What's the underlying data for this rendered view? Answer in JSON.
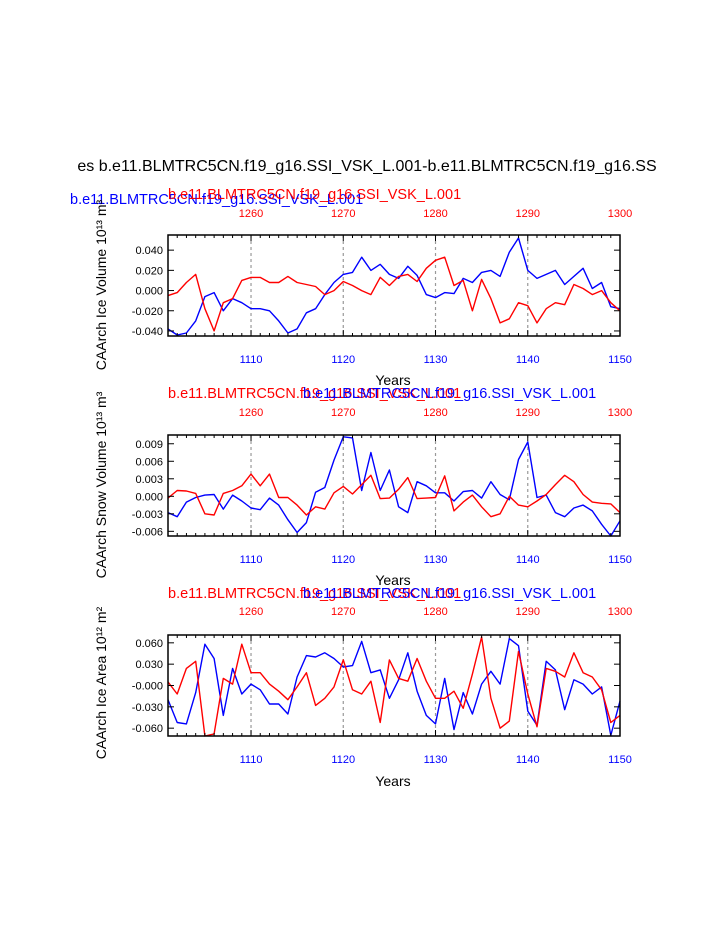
{
  "title": "es b.e11.BLMTRC5CN.f19_g16.SSI_VSK_L.001-b.e11.BLMTRC5CN.f19_g16.SS",
  "colors": {
    "blue": "#0000ff",
    "red": "#ff0000",
    "grid": "#999999",
    "frame": "#000000"
  },
  "chart_data": [
    {
      "type": "line",
      "name": "ice-volume",
      "ylabel": "CAArch Ice Volume 10¹³ m³",
      "xlabel": "Years",
      "legend_blue": "b.e11.BLMTRC5CN.f19_g16.SSI_VSK_L.001",
      "legend_red": "b.e11.BLMTRC5CN.f19_g16.SSI_VSK_L.001",
      "ylim": [
        -0.045,
        0.055
      ],
      "yticks": [
        0.04,
        0.02,
        0.0,
        -0.02,
        -0.04
      ],
      "ytick_labels": [
        "0.040",
        "0.020",
        "0.000",
        "-0.020",
        "-0.040"
      ],
      "bottom_xlim": [
        1101,
        1150
      ],
      "bottom_xticks": [
        1110,
        1120,
        1130,
        1140,
        1150
      ],
      "top_xlim": [
        1251,
        1300
      ],
      "top_xticks": [
        1260,
        1270,
        1280,
        1290,
        1300
      ],
      "series": [
        {
          "name": "blue",
          "x": [
            1101,
            1102,
            1103,
            1104,
            1105,
            1106,
            1107,
            1108,
            1109,
            1110,
            1111,
            1112,
            1113,
            1114,
            1115,
            1116,
            1117,
            1118,
            1119,
            1120,
            1121,
            1122,
            1123,
            1124,
            1125,
            1126,
            1127,
            1128,
            1129,
            1130,
            1131,
            1132,
            1133,
            1134,
            1135,
            1136,
            1137,
            1138,
            1139,
            1140,
            1141,
            1142,
            1143,
            1144,
            1145,
            1146,
            1147,
            1148,
            1149,
            1150
          ],
          "values": [
            -0.038,
            -0.044,
            -0.042,
            -0.03,
            -0.006,
            -0.002,
            -0.02,
            -0.008,
            -0.012,
            -0.018,
            -0.018,
            -0.02,
            -0.03,
            -0.042,
            -0.038,
            -0.022,
            -0.018,
            -0.004,
            0.008,
            0.016,
            0.018,
            0.033,
            0.02,
            0.026,
            0.016,
            0.012,
            0.024,
            0.015,
            -0.004,
            -0.007,
            -0.002,
            -0.003,
            0.012,
            0.008,
            0.018,
            0.02,
            0.014,
            0.038,
            0.052,
            0.02,
            0.012,
            0.016,
            0.02,
            0.006,
            0.014,
            0.022,
            0.002,
            0.008,
            -0.016,
            -0.018
          ]
        },
        {
          "name": "red",
          "x": [
            1101,
            1102,
            1103,
            1104,
            1105,
            1106,
            1107,
            1108,
            1109,
            1110,
            1111,
            1112,
            1113,
            1114,
            1115,
            1116,
            1117,
            1118,
            1119,
            1120,
            1121,
            1122,
            1123,
            1124,
            1125,
            1126,
            1127,
            1128,
            1129,
            1130,
            1131,
            1132,
            1133,
            1134,
            1135,
            1136,
            1137,
            1138,
            1139,
            1140,
            1141,
            1142,
            1143,
            1144,
            1145,
            1146,
            1147,
            1148,
            1149,
            1150
          ],
          "values": [
            -0.005,
            -0.002,
            0.008,
            0.016,
            -0.018,
            -0.04,
            -0.012,
            -0.008,
            0.01,
            0.013,
            0.013,
            0.008,
            0.008,
            0.014,
            0.008,
            0.006,
            0.004,
            -0.004,
            0.0,
            0.009,
            0.005,
            0.0,
            -0.004,
            0.013,
            0.005,
            0.014,
            0.016,
            0.009,
            0.022,
            0.03,
            0.033,
            0.005,
            0.01,
            -0.02,
            0.011,
            -0.008,
            -0.032,
            -0.028,
            -0.012,
            -0.015,
            -0.032,
            -0.018,
            -0.012,
            -0.014,
            0.006,
            0.002,
            -0.004,
            0.0,
            -0.012,
            -0.02
          ]
        }
      ]
    },
    {
      "type": "line",
      "name": "snow-volume",
      "ylabel": "CAArch Snow Volume 10¹³ m³",
      "xlabel": "Years",
      "legend_blue": "b.e11.BLMTRC5CN.f19_g16.SSI_VSK_L.001",
      "legend_red": "b.e11.BLMTRC5CN.f19_g16.SSI_VSK_L.001",
      "ylim": [
        -0.0068,
        0.0105
      ],
      "yticks": [
        0.009,
        0.006,
        0.003,
        0.0,
        -0.003,
        -0.006
      ],
      "ytick_labels": [
        "0.009",
        "0.006",
        "0.003",
        "0.000",
        "-0.003",
        "-0.006"
      ],
      "bottom_xlim": [
        1101,
        1150
      ],
      "bottom_xticks": [
        1110,
        1120,
        1130,
        1140,
        1150
      ],
      "top_xlim": [
        1251,
        1300
      ],
      "top_xticks": [
        1260,
        1270,
        1280,
        1290,
        1300
      ],
      "series": [
        {
          "name": "blue",
          "x": [
            1101,
            1102,
            1103,
            1104,
            1105,
            1106,
            1107,
            1108,
            1109,
            1110,
            1111,
            1112,
            1113,
            1114,
            1115,
            1116,
            1117,
            1118,
            1119,
            1120,
            1121,
            1122,
            1123,
            1124,
            1125,
            1126,
            1127,
            1128,
            1129,
            1130,
            1131,
            1132,
            1133,
            1134,
            1135,
            1136,
            1137,
            1138,
            1139,
            1140,
            1141,
            1142,
            1143,
            1144,
            1145,
            1146,
            1147,
            1148,
            1149,
            1150
          ],
          "values": [
            -0.0028,
            -0.0035,
            -0.001,
            -0.0002,
            0.0002,
            0.0003,
            -0.0022,
            0.0002,
            -0.0008,
            -0.002,
            -0.0023,
            -0.0003,
            -0.0015,
            -0.004,
            -0.0062,
            -0.0045,
            0.0007,
            0.0015,
            0.0062,
            0.0102,
            0.01,
            0.001,
            0.0075,
            0.001,
            0.0045,
            -0.0018,
            -0.0028,
            0.0025,
            0.0018,
            0.0006,
            0.0006,
            -0.0008,
            0.0008,
            0.001,
            -0.0003,
            0.0025,
            0.0003,
            -0.0006,
            0.0063,
            0.0093,
            -0.0002,
            0.0002,
            -0.0028,
            -0.0035,
            -0.002,
            -0.0015,
            -0.0025,
            -0.0048,
            -0.0068,
            -0.0042
          ]
        },
        {
          "name": "red",
          "x": [
            1101,
            1102,
            1103,
            1104,
            1105,
            1106,
            1107,
            1108,
            1109,
            1110,
            1111,
            1112,
            1113,
            1114,
            1115,
            1116,
            1117,
            1118,
            1119,
            1120,
            1121,
            1122,
            1123,
            1124,
            1125,
            1126,
            1127,
            1128,
            1129,
            1130,
            1131,
            1132,
            1133,
            1134,
            1135,
            1136,
            1137,
            1138,
            1139,
            1140,
            1141,
            1142,
            1143,
            1144,
            1145,
            1146,
            1147,
            1148,
            1149,
            1150
          ],
          "values": [
            -0.0003,
            0.001,
            0.0009,
            0.0005,
            -0.003,
            -0.0032,
            0.0005,
            0.001,
            0.0018,
            0.0038,
            0.0018,
            0.0038,
            -0.0002,
            -0.0002,
            -0.0015,
            -0.0032,
            -0.0018,
            -0.0022,
            0.0006,
            0.0017,
            0.0004,
            0.002,
            0.0036,
            -0.0004,
            -0.0003,
            0.0012,
            0.0032,
            -0.0004,
            -0.0003,
            -0.0002,
            0.0035,
            -0.0025,
            -0.001,
            0.0002,
            -0.0018,
            -0.0035,
            -0.003,
            0.0,
            -0.0015,
            -0.0018,
            -0.0008,
            0.0003,
            0.002,
            0.0036,
            0.0025,
            0.0003,
            -0.001,
            -0.0012,
            -0.0013,
            -0.0028
          ]
        }
      ]
    },
    {
      "type": "line",
      "name": "ice-area",
      "ylabel": "CAArch Ice Area 10¹² m²",
      "xlabel": "Years",
      "legend_blue": "b.e11.BLMTRC5CN.f19_g16.SSI_VSK_L.001",
      "legend_red": "b.e11.BLMTRC5CN.f19_g16.SSI_VSK_L.001",
      "ylim": [
        -0.071,
        0.071
      ],
      "yticks": [
        0.06,
        0.03,
        0.0,
        -0.03,
        -0.06
      ],
      "ytick_labels": [
        "0.060",
        "0.030",
        "-0.000",
        "-0.030",
        "-0.060"
      ],
      "bottom_xlim": [
        1101,
        1150
      ],
      "bottom_xticks": [
        1110,
        1120,
        1130,
        1140,
        1150
      ],
      "top_xlim": [
        1251,
        1300
      ],
      "top_xticks": [
        1260,
        1270,
        1280,
        1290,
        1300
      ],
      "series": [
        {
          "name": "blue",
          "x": [
            1101,
            1102,
            1103,
            1104,
            1105,
            1106,
            1107,
            1108,
            1109,
            1110,
            1111,
            1112,
            1113,
            1114,
            1115,
            1116,
            1117,
            1118,
            1119,
            1120,
            1121,
            1122,
            1123,
            1124,
            1125,
            1126,
            1127,
            1128,
            1129,
            1130,
            1131,
            1132,
            1133,
            1134,
            1135,
            1136,
            1137,
            1138,
            1139,
            1140,
            1141,
            1142,
            1143,
            1144,
            1145,
            1146,
            1147,
            1148,
            1149,
            1150
          ],
          "values": [
            -0.02,
            -0.052,
            -0.054,
            -0.01,
            0.058,
            0.038,
            -0.042,
            0.024,
            -0.012,
            0.002,
            -0.006,
            -0.026,
            -0.026,
            -0.04,
            0.012,
            0.042,
            0.04,
            0.046,
            0.038,
            0.026,
            0.028,
            0.062,
            0.018,
            0.022,
            -0.018,
            0.008,
            0.046,
            -0.008,
            -0.042,
            -0.054,
            0.01,
            -0.062,
            -0.01,
            -0.04,
            0.002,
            0.02,
            0.002,
            0.066,
            0.056,
            -0.036,
            -0.056,
            0.034,
            0.022,
            -0.034,
            0.008,
            0.002,
            -0.012,
            -0.002,
            -0.07,
            -0.022
          ]
        },
        {
          "name": "red",
          "x": [
            1101,
            1102,
            1103,
            1104,
            1105,
            1106,
            1107,
            1108,
            1109,
            1110,
            1111,
            1112,
            1113,
            1114,
            1115,
            1116,
            1117,
            1118,
            1119,
            1120,
            1121,
            1122,
            1123,
            1124,
            1125,
            1126,
            1127,
            1128,
            1129,
            1130,
            1131,
            1132,
            1133,
            1134,
            1135,
            1136,
            1137,
            1138,
            1139,
            1140,
            1141,
            1142,
            1143,
            1144,
            1145,
            1146,
            1147,
            1148,
            1149,
            1150
          ],
          "values": [
            0.005,
            -0.012,
            0.024,
            0.034,
            -0.071,
            -0.068,
            0.01,
            0.002,
            0.058,
            0.018,
            0.018,
            0.002,
            -0.008,
            -0.02,
            -0.002,
            0.018,
            -0.028,
            -0.018,
            -0.002,
            0.036,
            -0.006,
            -0.012,
            0.006,
            -0.052,
            0.036,
            0.01,
            0.006,
            0.038,
            0.006,
            -0.018,
            -0.018,
            -0.008,
            -0.032,
            0.016,
            0.068,
            -0.018,
            -0.06,
            -0.05,
            0.048,
            -0.012,
            -0.058,
            0.024,
            0.02,
            0.012,
            0.046,
            0.018,
            0.012,
            -0.006,
            -0.052,
            -0.042
          ]
        }
      ]
    }
  ]
}
